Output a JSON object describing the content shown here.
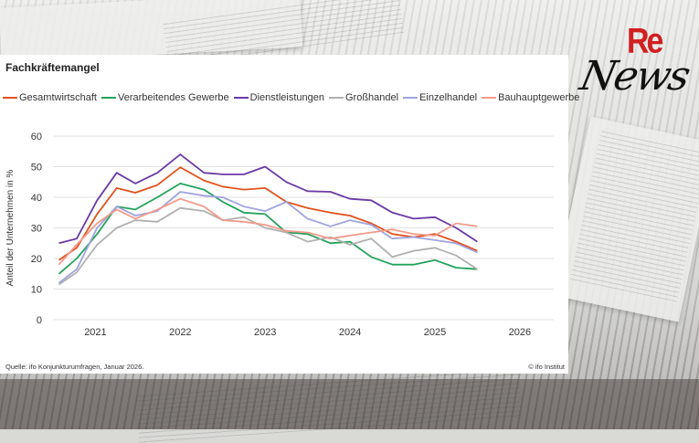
{
  "page": {
    "logo_re": "Re",
    "logo_news": "News"
  },
  "chart_data": {
    "type": "line",
    "title": "Fachkräftemangel",
    "xlabel": "",
    "ylabel": "Anteil der Unternehmen in %",
    "ylim": [
      0,
      60
    ],
    "yticks": [
      0,
      10,
      20,
      30,
      40,
      50,
      60
    ],
    "xlim": [
      2020.5,
      2026.4
    ],
    "xticks": [
      "2021",
      "2022",
      "2023",
      "2024",
      "2025",
      "2026"
    ],
    "grid": true,
    "legend_position": "top",
    "x": [
      2020.57,
      2020.78,
      2021.02,
      2021.25,
      2021.47,
      2021.73,
      2022.0,
      2022.28,
      2022.5,
      2022.75,
      2023.0,
      2023.25,
      2023.5,
      2023.77,
      2024.0,
      2024.25,
      2024.5,
      2024.75,
      2025.0,
      2025.25,
      2025.5
    ],
    "series": [
      {
        "name": "Gesamtwirtschaft",
        "color": "#e2521d",
        "values": [
          19.5,
          23.5,
          34.5,
          43,
          41.5,
          44,
          49.8,
          45.5,
          43.5,
          42.5,
          43,
          38.5,
          36.5,
          35,
          34,
          31.5,
          28,
          27,
          28,
          25.5,
          22.5
        ]
      },
      {
        "name": "Verarbeitendes Gewerbe",
        "color": "#23a25c",
        "values": [
          15,
          20,
          28,
          37,
          36,
          40,
          44.5,
          42.5,
          38.5,
          35,
          34.5,
          28.5,
          28,
          25,
          25.5,
          20.5,
          18,
          18,
          19.5,
          17,
          16.5
        ]
      },
      {
        "name": "Dienstleistungen",
        "color": "#6a3aa6",
        "values": [
          25,
          26.5,
          39,
          48,
          44.5,
          48,
          54,
          48,
          47.5,
          47.5,
          50,
          45,
          42,
          41.8,
          39.5,
          39,
          35,
          33,
          33.5,
          30,
          25.5
        ]
      },
      {
        "name": "Großhandel",
        "color": "#b0b0b0",
        "values": [
          11.5,
          15.5,
          24.5,
          30,
          32.5,
          32,
          36.5,
          35.5,
          32.5,
          33.5,
          30,
          28.5,
          25.5,
          27,
          24.5,
          26.5,
          20.5,
          22.5,
          23.5,
          21,
          16.5
        ]
      },
      {
        "name": "Einzelhandel",
        "color": "#9fa3dd",
        "values": [
          12,
          16.5,
          30,
          37,
          34,
          35.5,
          41.8,
          40.5,
          40,
          37,
          35.5,
          38.5,
          33,
          30.5,
          32.5,
          31,
          26.5,
          27,
          26,
          25,
          22
        ]
      },
      {
        "name": "Bauhauptgewerbe",
        "color": "#f29b8a",
        "values": [
          18,
          24.5,
          31.5,
          36,
          33,
          36,
          39.5,
          37,
          32.5,
          32,
          31,
          29,
          28.5,
          26.5,
          27.5,
          28.5,
          29.5,
          28,
          27.5,
          31.5,
          30.5
        ]
      }
    ],
    "source": "Quelle: ifo Konjunkturumfragen,  Januar 2026.",
    "credit": "© ifo Institut"
  }
}
